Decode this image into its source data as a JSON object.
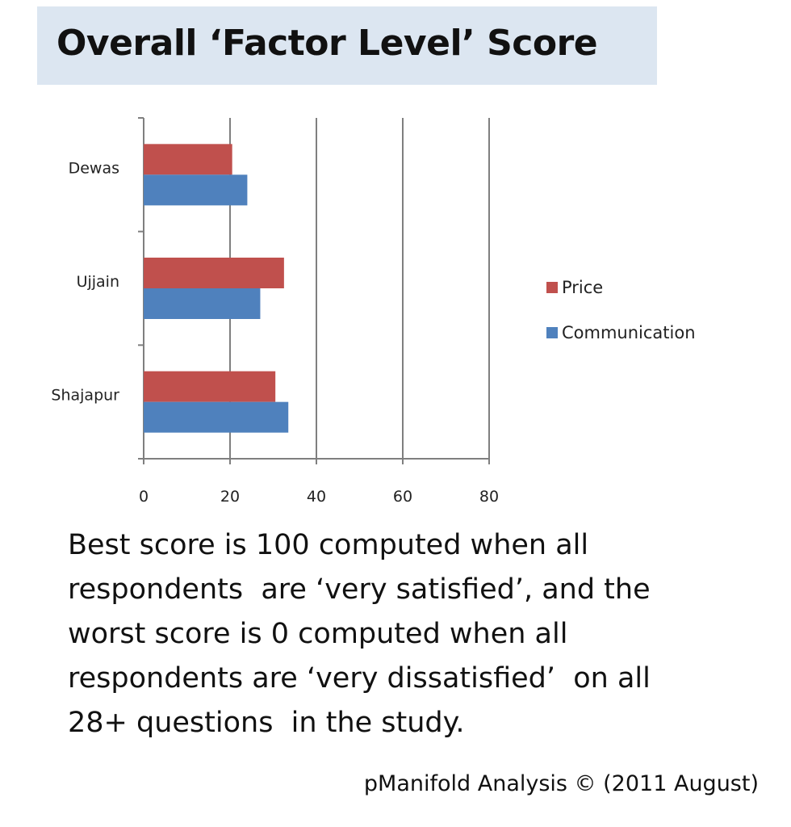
{
  "title": "Overall ‘Factor Level’ Score",
  "note_lines": [
    "Best score is 100 computed when all",
    "respondents  are ‘very satisfied’, and the",
    "worst score is 0 computed when all",
    "respondents are ‘very dissatisfied’  on all",
    "28+ questions  in the study."
  ],
  "credit": "pManifold Analysis © (2011 August)",
  "chart_data": {
    "type": "bar",
    "orientation": "horizontal",
    "categories": [
      "Dewas",
      "Ujjain",
      "Shajapur"
    ],
    "series": [
      {
        "name": "Price",
        "values": [
          20.5,
          32.5,
          30.5
        ],
        "color": "#c0504d"
      },
      {
        "name": "Communication",
        "values": [
          24,
          27,
          33.5
        ],
        "color": "#4f81bd"
      }
    ],
    "xlim": [
      0,
      80
    ],
    "xticks": [
      0,
      20,
      40,
      60,
      80
    ],
    "grid": true,
    "legend_position": "right"
  }
}
